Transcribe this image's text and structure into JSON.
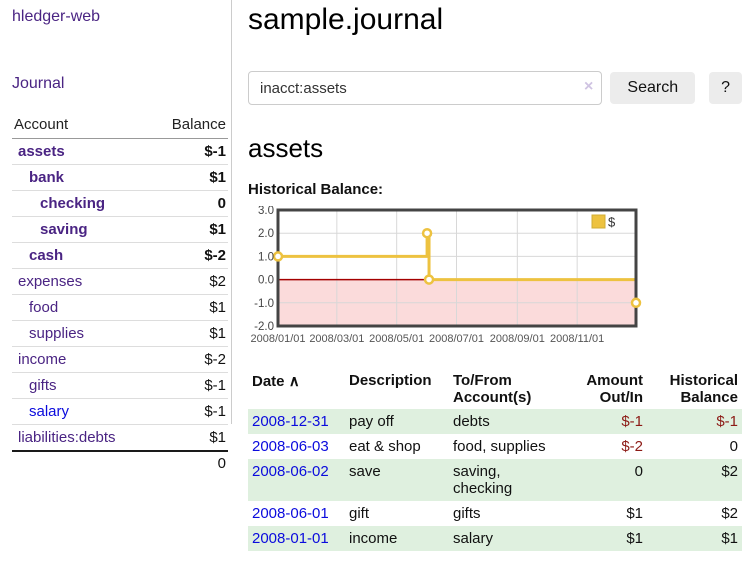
{
  "colors": {
    "link_purple": "#4a2483",
    "link_blue": "#0b0bdd",
    "negative_strong": "#8c1a15",
    "negative_muted": "#c7827e",
    "row_green": "#dff0df",
    "chart_line": "#edc240",
    "chart_negative_fill": "#fbdbdb",
    "chart_zero_line": "#a40000",
    "chart_border": "#444444",
    "chart_grid": "#d8d8d8"
  },
  "sidebar": {
    "app_title": "hledger-web",
    "journal_link": "Journal",
    "table": {
      "headers": {
        "account": "Account",
        "balance": "Balance"
      },
      "accounts": [
        {
          "name": "assets",
          "balance": "$-1",
          "depth": 1,
          "bold": true,
          "neg": "strong"
        },
        {
          "name": "bank",
          "balance": "$1",
          "depth": 2,
          "bold": true
        },
        {
          "name": "checking",
          "balance": "0",
          "depth": 3,
          "bold": true
        },
        {
          "name": "saving",
          "balance": "$1",
          "depth": 3,
          "bold": true
        },
        {
          "name": "cash",
          "balance": "$-2",
          "depth": 2,
          "bold": true,
          "neg": "strong"
        },
        {
          "name": "expenses",
          "balance": "$2",
          "depth": 1
        },
        {
          "name": "food",
          "balance": "$1",
          "depth": 2
        },
        {
          "name": "supplies",
          "balance": "$1",
          "depth": 2
        },
        {
          "name": "income",
          "balance": "$-2",
          "depth": 1,
          "neg": "muted"
        },
        {
          "name": "gifts",
          "balance": "$-1",
          "depth": 2,
          "neg": "muted"
        },
        {
          "name": "salary",
          "balance": "$-1",
          "depth": 2,
          "neg": "muted",
          "link_color": "blue"
        },
        {
          "name": "liabilities:debts",
          "balance": "$1",
          "depth": 1
        }
      ],
      "total": "0"
    }
  },
  "main": {
    "title": "sample.journal",
    "search": {
      "value": "inacct:assets",
      "clear_icon": "×",
      "button": "Search",
      "help_button": "?"
    },
    "account_heading": "assets",
    "chart_label": "Historical Balance:"
  },
  "chart_data": {
    "type": "line",
    "style": "step",
    "title": "Historical Balance",
    "series": [
      {
        "name": "$",
        "color": "#edc240",
        "points": [
          [
            "2008-01-01",
            1
          ],
          [
            "2008-06-01",
            2
          ],
          [
            "2008-06-03",
            0
          ],
          [
            "2008-12-31",
            -1
          ]
        ]
      }
    ],
    "x_ticks": [
      "2008/01/01",
      "2008/03/01",
      "2008/05/01",
      "2008/07/01",
      "2008/09/01",
      "2008/11/01"
    ],
    "y_ticks": [
      3.0,
      2.0,
      1.0,
      0.0,
      -1.0,
      -2.0
    ],
    "xlim": [
      "2008-01-01",
      "2008-12-31"
    ],
    "ylim": [
      -2,
      3
    ],
    "grid": true,
    "legend_position": "top-right",
    "negative_region": {
      "from": 0,
      "to": -2,
      "fill": "#fbdbdb",
      "line": "#a40000"
    }
  },
  "register": {
    "headers": {
      "date": "Date",
      "sort_icon": "∧",
      "description": "Description",
      "tofrom": "To/From Account(s)",
      "amount": "Amount Out/In",
      "balance": "Historical Balance"
    },
    "rows": [
      {
        "date": "2008-12-31",
        "description": "pay off",
        "accounts": "debts",
        "amount": "$-1",
        "balance": "$-1",
        "amount_neg": true,
        "balance_neg": true
      },
      {
        "date": "2008-06-03",
        "description": "eat & shop",
        "accounts": "food, supplies",
        "amount": "$-2",
        "balance": "0",
        "amount_neg": true
      },
      {
        "date": "2008-06-02",
        "description": "save",
        "accounts": "saving, checking",
        "amount": "0",
        "balance": "$2"
      },
      {
        "date": "2008-06-01",
        "description": "gift",
        "accounts": "gifts",
        "amount": "$1",
        "balance": "$2"
      },
      {
        "date": "2008-01-01",
        "description": "income",
        "accounts": "salary",
        "amount": "$1",
        "balance": "$1"
      }
    ]
  }
}
